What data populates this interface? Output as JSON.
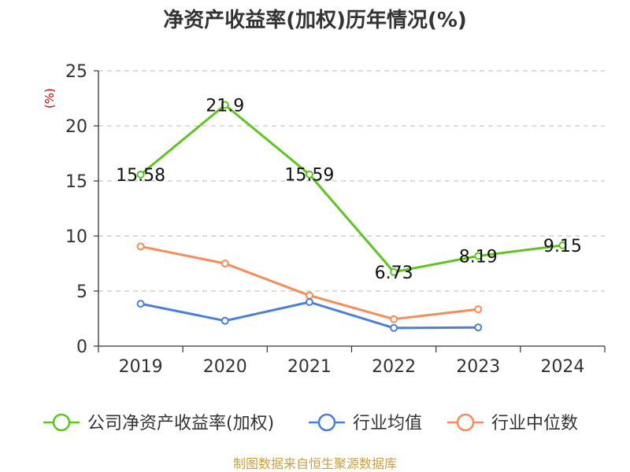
{
  "chart_data": {
    "type": "line",
    "title": "净资产收益率(加权)历年情况(%)",
    "ylabel": "(%)",
    "xlabel": "",
    "categories": [
      "2019",
      "2020",
      "2021",
      "2022",
      "2023",
      "2024"
    ],
    "ylim": [
      0,
      25
    ],
    "yticks": [
      0,
      5,
      10,
      15,
      20,
      25
    ],
    "grid": true,
    "legend_position": "bottom",
    "series": [
      {
        "name": "公司净资产收益率(加权)",
        "color": "#5ec41f",
        "values": [
          15.58,
          21.9,
          15.59,
          6.73,
          8.19,
          9.15
        ],
        "labels": [
          "15.58",
          "21.9",
          "15.59",
          "6.73",
          "8.19",
          "9.15"
        ]
      },
      {
        "name": "行业均值",
        "color": "#4a7fd8",
        "values": [
          3.85,
          2.3,
          4.0,
          1.65,
          1.7,
          null
        ]
      },
      {
        "name": "行业中位数",
        "color": "#f58c5a",
        "values": [
          9.05,
          7.5,
          4.6,
          2.45,
          3.35,
          null
        ]
      }
    ]
  },
  "source_note": "制图数据来自恒生聚源数据库"
}
